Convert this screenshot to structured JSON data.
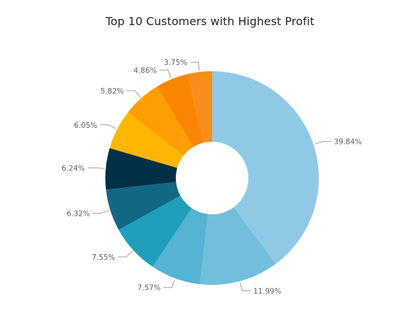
{
  "chart_data": {
    "type": "pie",
    "title": "Top 10 Customers with Highest Profit",
    "donut": true,
    "legend": "none",
    "series": [
      {
        "label": "39.84%",
        "value": 39.84,
        "color": "#90C9E6"
      },
      {
        "label": "11.99%",
        "value": 11.99,
        "color": "#72BFDD"
      },
      {
        "label": "7.57%",
        "value": 7.57,
        "color": "#55B3D4"
      },
      {
        "label": "7.55%",
        "value": 7.55,
        "color": "#219EBC"
      },
      {
        "label": "6.32%",
        "value": 6.32,
        "color": "#126782"
      },
      {
        "label": "6.24%",
        "value": 6.24,
        "color": "#023047"
      },
      {
        "label": "6.05%",
        "value": 6.05,
        "color": "#FFB703"
      },
      {
        "label": "5.82%",
        "value": 5.82,
        "color": "#FD9E02"
      },
      {
        "label": "4.86%",
        "value": 4.86,
        "color": "#FB8500"
      },
      {
        "label": "3.75%",
        "value": 3.75,
        "color": "#F98D1C"
      }
    ]
  }
}
